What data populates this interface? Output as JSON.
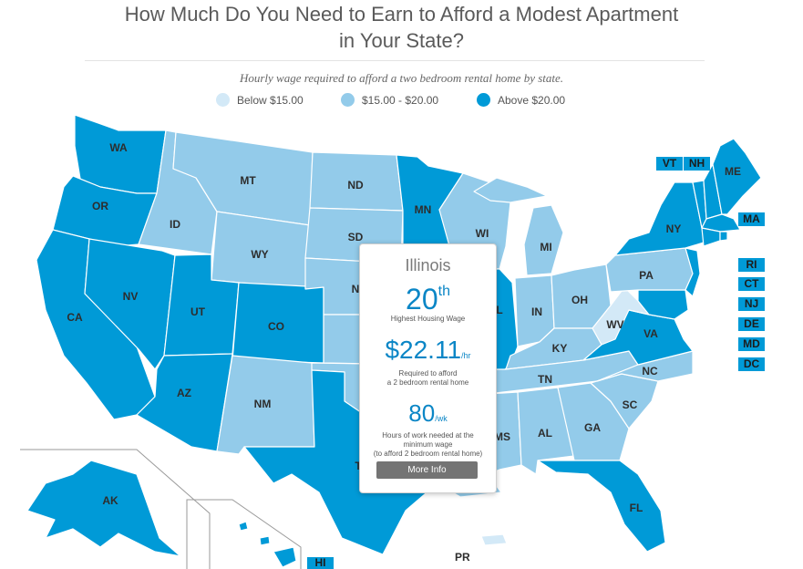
{
  "page": {
    "title_line1": "How Much Do You Need to Earn to Afford a Modest Apartment",
    "title_line2": "in Your State?",
    "subtitle": "Hourly wage required to afford a two bedroom rental home by state."
  },
  "legend": [
    {
      "label": "Below $15.00",
      "color": "#d3e9f7"
    },
    {
      "label": "$15.00 - $20.00",
      "color": "#93cbea"
    },
    {
      "label": "Above $20.00",
      "color": "#009ad7"
    }
  ],
  "map": {
    "colors": {
      "high": "#009ad7",
      "mid": "#93cbea",
      "low": "#d3e9f7"
    },
    "state_labels": {
      "WA": "WA",
      "OR": "OR",
      "CA": "CA",
      "ID": "ID",
      "NV": "NV",
      "MT": "MT",
      "WY": "WY",
      "UT": "UT",
      "AZ": "AZ",
      "CO": "CO",
      "NM": "NM",
      "ND": "ND",
      "SD": "SD",
      "NE": "N",
      "TX": "T",
      "MN": "MN",
      "WI": "WI",
      "IL": "L",
      "MI": "MI",
      "IN": "IN",
      "OH": "OH",
      "KY": "KY",
      "TN": "TN",
      "MS": "MS",
      "AL": "AL",
      "GA": "GA",
      "SC": "SC",
      "NC": "NC",
      "VA": "VA",
      "WV": "WV",
      "PA": "PA",
      "NY": "NY",
      "ME": "ME",
      "FL": "FL",
      "AK": "AK"
    },
    "small_states": [
      "VT",
      "NH",
      "MA",
      "RI",
      "CT",
      "NJ",
      "DE",
      "MD",
      "DC",
      "HI"
    ],
    "territory": "PR"
  },
  "popup": {
    "state": "Illinois",
    "rank": "20",
    "rank_suffix": "th",
    "rank_caption": "Highest Housing Wage",
    "wage": "$22.11",
    "wage_unit": "/hr",
    "wage_caption_1": "Required to afford",
    "wage_caption_2": "a 2 bedroom rental home",
    "hours": "80",
    "hours_unit": "/wk",
    "hours_caption_1": "Hours of work needed at the",
    "hours_caption_2": "minimum wage",
    "hours_caption_3": "(to afford 2 bedroom rental home)",
    "button": "More Info"
  }
}
